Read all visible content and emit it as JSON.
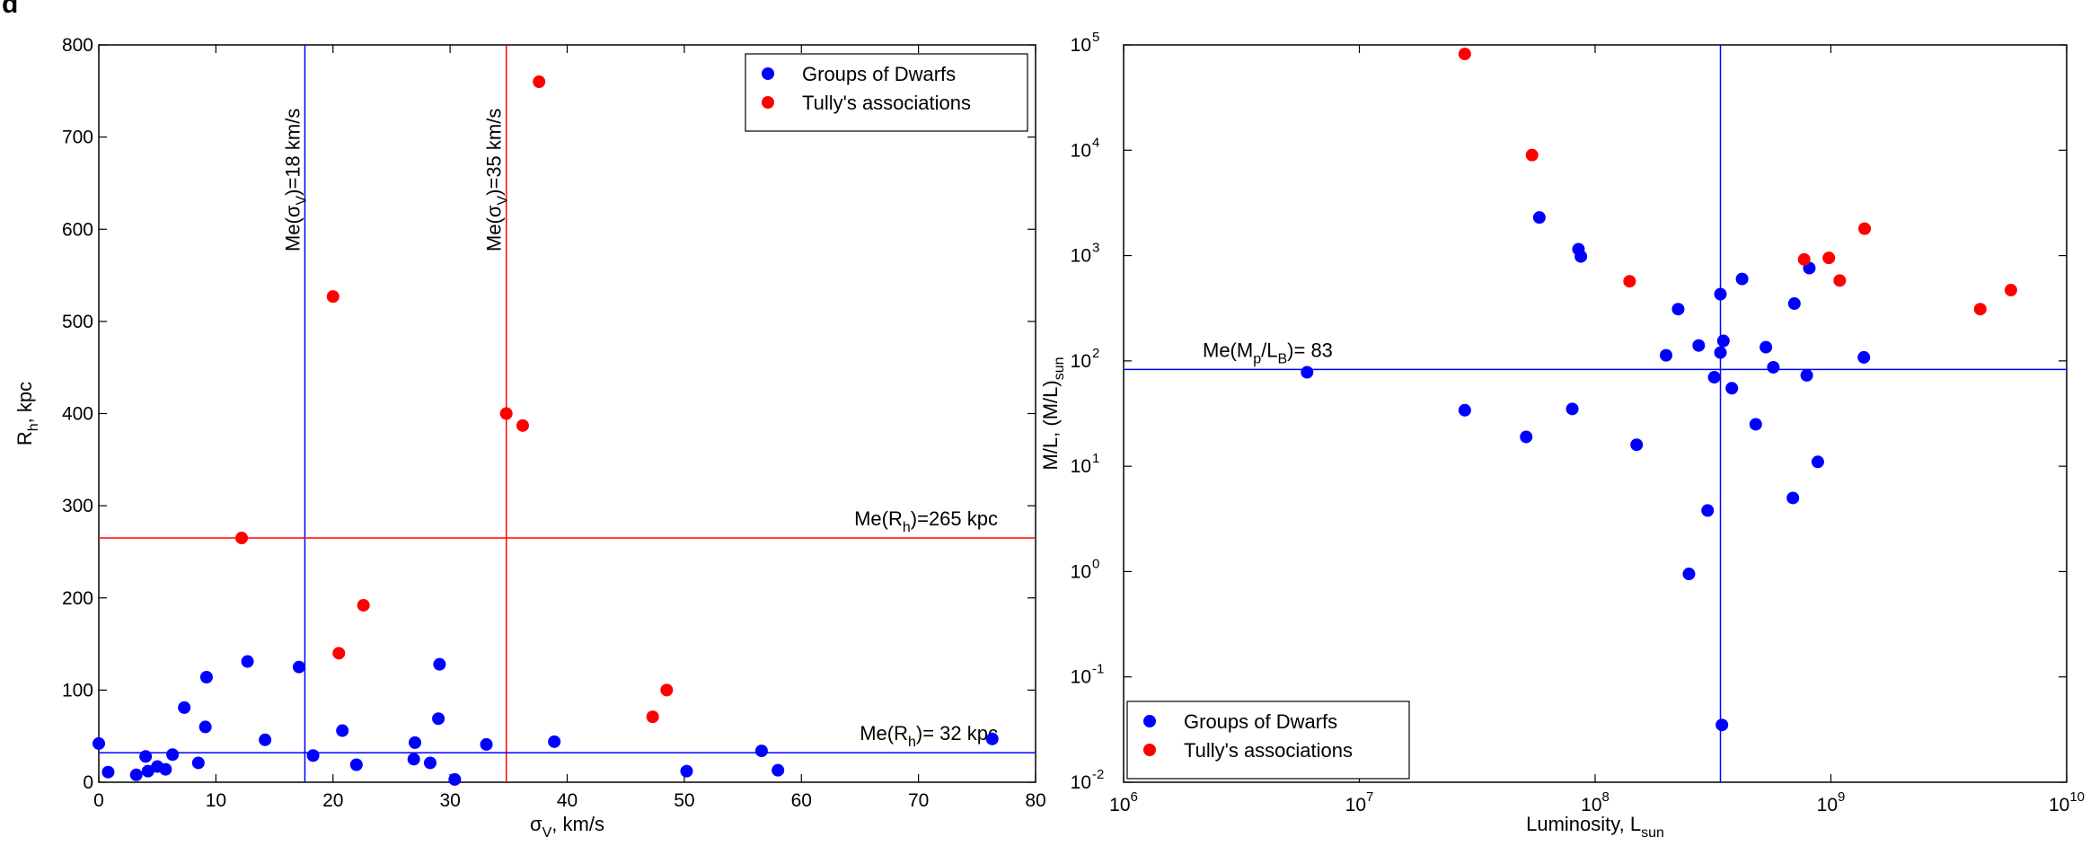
{
  "figure": {
    "panel_letter": "d"
  },
  "chart_data": [
    {
      "type": "scatter",
      "xlabel_main": "σ",
      "xlabel_sub": "V",
      "xlabel_tail": ", km/s",
      "ylabel_main": "R",
      "ylabel_sub": "h",
      "ylabel_tail": ", kpc",
      "xlim": [
        0,
        80
      ],
      "ylim": [
        0,
        800
      ],
      "xticks": [
        0,
        10,
        20,
        30,
        40,
        50,
        60,
        70,
        80
      ],
      "yticks": [
        0,
        100,
        200,
        300,
        400,
        500,
        600,
        700,
        800
      ],
      "grid": false,
      "legend_position": "top-right",
      "series": [
        {
          "name": "Groups of Dwarfs",
          "color": "#0000ff",
          "points": [
            [
              0.0,
              42
            ],
            [
              0.8,
              11
            ],
            [
              3.2,
              8
            ],
            [
              4.0,
              28
            ],
            [
              4.2,
              12
            ],
            [
              5.0,
              17
            ],
            [
              5.7,
              14
            ],
            [
              6.3,
              30
            ],
            [
              7.3,
              81
            ],
            [
              8.5,
              21
            ],
            [
              9.1,
              60
            ],
            [
              9.2,
              114
            ],
            [
              12.7,
              131
            ],
            [
              14.2,
              46
            ],
            [
              17.1,
              125
            ],
            [
              18.3,
              29
            ],
            [
              20.8,
              56
            ],
            [
              22.0,
              19
            ],
            [
              26.9,
              25
            ],
            [
              27.0,
              43
            ],
            [
              28.3,
              21
            ],
            [
              29.0,
              69
            ],
            [
              29.1,
              128
            ],
            [
              30.4,
              3
            ],
            [
              33.1,
              41
            ],
            [
              38.9,
              44
            ],
            [
              50.2,
              12
            ],
            [
              56.6,
              34
            ],
            [
              58.0,
              13
            ],
            [
              76.3,
              47
            ]
          ]
        },
        {
          "name": "Tully's associations",
          "color": "#ff0000",
          "points": [
            [
              12.2,
              265
            ],
            [
              20.0,
              527
            ],
            [
              20.5,
              140
            ],
            [
              22.6,
              192
            ],
            [
              34.8,
              400
            ],
            [
              36.2,
              387
            ],
            [
              37.6,
              760
            ],
            [
              47.3,
              71
            ],
            [
              48.5,
              100
            ]
          ]
        }
      ],
      "reference_lines": [
        {
          "orientation": "vertical",
          "value": 17.6,
          "color": "#0000ff",
          "label_main": "Me(σ",
          "label_sub": "V",
          "label_tail": ")=18 km/s"
        },
        {
          "orientation": "vertical",
          "value": 34.8,
          "color": "#ff0000",
          "label_main": "Me(σ",
          "label_sub": "V",
          "label_tail": ")=35 km/s"
        },
        {
          "orientation": "horizontal",
          "value": 265,
          "color": "#ff0000",
          "label_main": "Me(R",
          "label_sub": "h",
          "label_tail": ")=265 kpc"
        },
        {
          "orientation": "horizontal",
          "value": 32,
          "color": "#0000ff",
          "label_main": "Me(R",
          "label_sub": "h",
          "label_tail": ")= 32 kpc"
        }
      ]
    },
    {
      "type": "scatter",
      "xscale": "log",
      "yscale": "log",
      "xlabel_main": "Luminosity, L",
      "xlabel_sub": "sun",
      "ylabel_main": "M/L, (M/L)",
      "ylabel_sub": "sun",
      "xlim": [
        1000000,
        10000000000
      ],
      "ylim": [
        0.01,
        100000
      ],
      "xticks": [
        {
          "value": 1000000,
          "base": "10",
          "exp": "6"
        },
        {
          "value": 10000000,
          "base": "10",
          "exp": "7"
        },
        {
          "value": 100000000,
          "base": "10",
          "exp": "8"
        },
        {
          "value": 1000000000,
          "base": "10",
          "exp": "9"
        },
        {
          "value": 10000000000,
          "base": "10",
          "exp": "10"
        }
      ],
      "yticks": [
        {
          "value": 0.01,
          "base": "10",
          "exp": "-2"
        },
        {
          "value": 0.1,
          "base": "10",
          "exp": "-1"
        },
        {
          "value": 1,
          "base": "10",
          "exp": "0"
        },
        {
          "value": 10,
          "base": "10",
          "exp": "1"
        },
        {
          "value": 100,
          "base": "10",
          "exp": "2"
        },
        {
          "value": 1000,
          "base": "10",
          "exp": "3"
        },
        {
          "value": 10000,
          "base": "10",
          "exp": "4"
        },
        {
          "value": 100000,
          "base": "10",
          "exp": "5"
        }
      ],
      "grid": false,
      "legend_position": "bottom-left",
      "series": [
        {
          "name": "Groups of Dwarfs",
          "color": "#0000ff",
          "points": [
            [
              6000000,
              78
            ],
            [
              28000000,
              34
            ],
            [
              51000000,
              19
            ],
            [
              58000000,
              2300
            ],
            [
              80000000,
              35
            ],
            [
              85000000,
              1150
            ],
            [
              87000000,
              980
            ],
            [
              150000000,
              16
            ],
            [
              200000000,
              113
            ],
            [
              225000000,
              310
            ],
            [
              250000000,
              0.95
            ],
            [
              275000000,
              140
            ],
            [
              300000000,
              3.8
            ],
            [
              320000000,
              70
            ],
            [
              340000000,
              430
            ],
            [
              340000000,
              120
            ],
            [
              345000000,
              0.035
            ],
            [
              350000000,
              155
            ],
            [
              380000000,
              55
            ],
            [
              420000000,
              600
            ],
            [
              480000000,
              25
            ],
            [
              530000000,
              135
            ],
            [
              570000000,
              87
            ],
            [
              690000000,
              5
            ],
            [
              700000000,
              350
            ],
            [
              790000000,
              73
            ],
            [
              810000000,
              760
            ],
            [
              880000000,
              11
            ],
            [
              1380000000,
              108
            ]
          ]
        },
        {
          "name": "Tully's associations",
          "color": "#ff0000",
          "points": [
            [
              28000000,
              82000
            ],
            [
              54000000,
              9000
            ],
            [
              140000000,
              570
            ],
            [
              770000000,
              920
            ],
            [
              980000000,
              950
            ],
            [
              1090000000,
              580
            ],
            [
              1390000000,
              1800
            ],
            [
              4300000000,
              310
            ],
            [
              5800000000,
              470
            ]
          ]
        }
      ],
      "reference_lines": [
        {
          "orientation": "horizontal",
          "value": 83,
          "color": "#0000ff",
          "label_main": "Me(M",
          "label_sub1": "p",
          "label_mid": "/L",
          "label_sub2": "B",
          "label_tail": ")= 83"
        },
        {
          "orientation": "vertical",
          "value": 340000000,
          "color": "#0000ff"
        }
      ]
    }
  ]
}
